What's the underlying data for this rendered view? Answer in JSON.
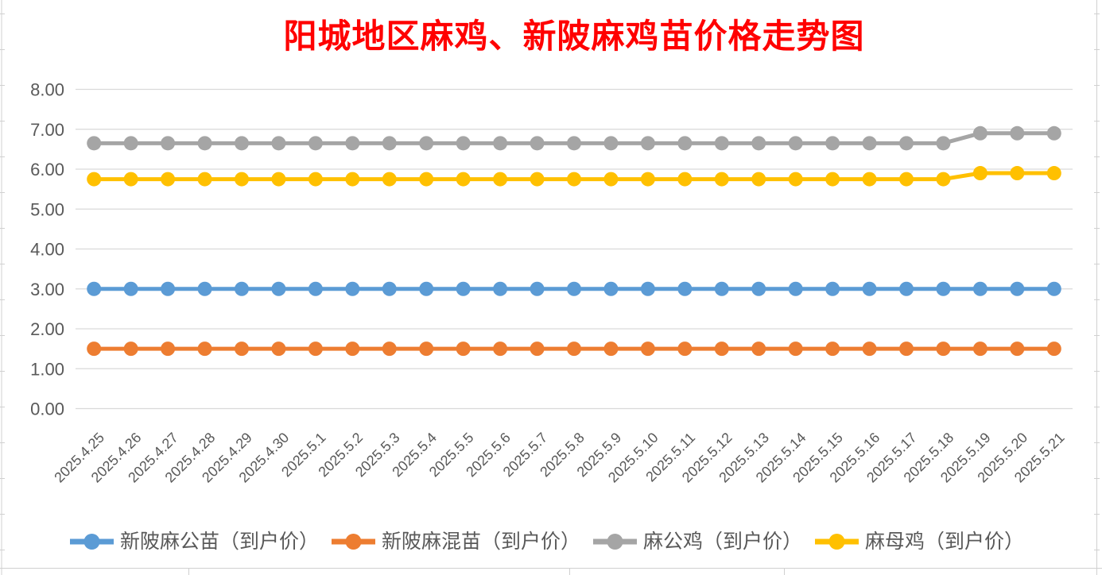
{
  "window": {
    "background": "#FFFFFF"
  },
  "chart_data": {
    "type": "line",
    "title": "阳城地区麻鸡、新陂麻鸡苗价格走势图",
    "title_color": "#FF0000",
    "xlabel": "",
    "ylabel": "",
    "ylim": [
      0,
      8
    ],
    "ytick_step": 1,
    "y_tick_labels": [
      "0.00",
      "1.00",
      "2.00",
      "3.00",
      "4.00",
      "5.00",
      "6.00",
      "7.00",
      "8.00"
    ],
    "grid": true,
    "gridline_color": "#D9D9D9",
    "axis_text_color": "#595959",
    "spreadsheet_line_color": "#D0D0D0",
    "legend_position": "bottom",
    "categories": [
      "2025.4.25",
      "2025.4.26",
      "2025.4.27",
      "2025.4.28",
      "2025.4.29",
      "2025.4.30",
      "2025.5.1",
      "2025.5.2",
      "2025.5.3",
      "2025.5.4",
      "2025.5.5",
      "2025.5.6",
      "2025.5.7",
      "2025.5.8",
      "2025.5.9",
      "2025.5.10",
      "2025.5.11",
      "2025.5.12",
      "2025.5.13",
      "2025.5.14",
      "2025.5.15",
      "2025.5.16",
      "2025.5.17",
      "2025.5.18",
      "2025.5.19",
      "2025.5.20",
      "2025.5.21"
    ],
    "series": [
      {
        "name": "新陂麻公苗（到户价）",
        "color": "#5B9BD5",
        "marker": "circle",
        "values": [
          3.0,
          3.0,
          3.0,
          3.0,
          3.0,
          3.0,
          3.0,
          3.0,
          3.0,
          3.0,
          3.0,
          3.0,
          3.0,
          3.0,
          3.0,
          3.0,
          3.0,
          3.0,
          3.0,
          3.0,
          3.0,
          3.0,
          3.0,
          3.0,
          3.0,
          3.0,
          3.0
        ]
      },
      {
        "name": "新陂麻混苗（到户价）",
        "color": "#ED7D31",
        "marker": "circle",
        "values": [
          1.5,
          1.5,
          1.5,
          1.5,
          1.5,
          1.5,
          1.5,
          1.5,
          1.5,
          1.5,
          1.5,
          1.5,
          1.5,
          1.5,
          1.5,
          1.5,
          1.5,
          1.5,
          1.5,
          1.5,
          1.5,
          1.5,
          1.5,
          1.5,
          1.5,
          1.5,
          1.5
        ]
      },
      {
        "name": "麻公鸡（到户价）",
        "color": "#A5A5A5",
        "marker": "circle",
        "values": [
          6.65,
          6.65,
          6.65,
          6.65,
          6.65,
          6.65,
          6.65,
          6.65,
          6.65,
          6.65,
          6.65,
          6.65,
          6.65,
          6.65,
          6.65,
          6.65,
          6.65,
          6.65,
          6.65,
          6.65,
          6.65,
          6.65,
          6.65,
          6.65,
          6.9,
          6.9,
          6.9
        ]
      },
      {
        "name": "麻母鸡（到户价）",
        "color": "#FFC000",
        "marker": "circle",
        "values": [
          5.75,
          5.75,
          5.75,
          5.75,
          5.75,
          5.75,
          5.75,
          5.75,
          5.75,
          5.75,
          5.75,
          5.75,
          5.75,
          5.75,
          5.75,
          5.75,
          5.75,
          5.75,
          5.75,
          5.75,
          5.75,
          5.75,
          5.75,
          5.75,
          5.9,
          5.9,
          5.9
        ]
      }
    ]
  }
}
